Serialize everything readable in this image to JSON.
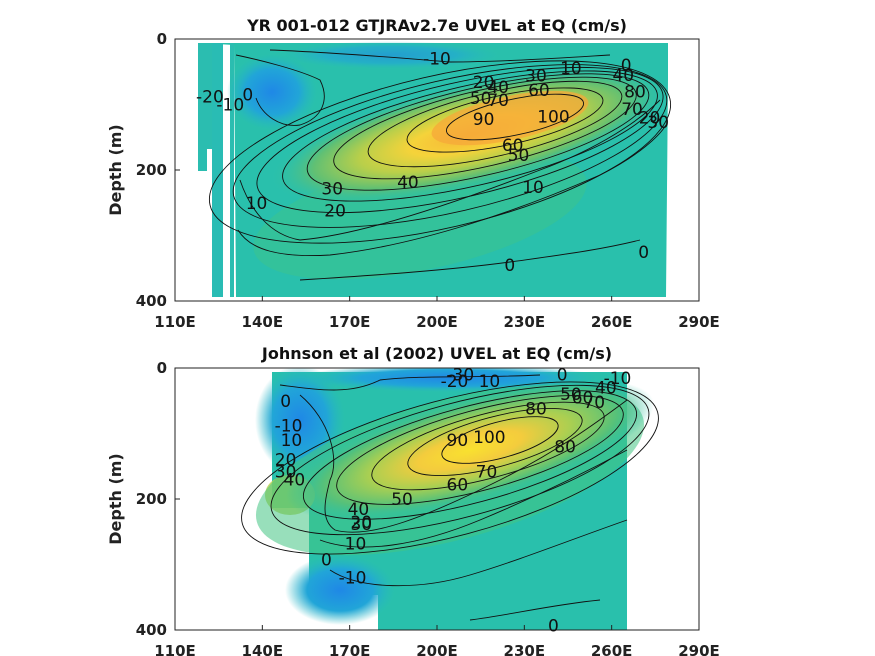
{
  "chart_data": [
    {
      "type": "heatmap",
      "title": "YR 001-012 GTJRAv2.7e UVEL at EQ (cm/s)",
      "xlabel": "",
      "ylabel": "Depth (m)",
      "xlim": [
        110,
        290
      ],
      "ylim": [
        400,
        0
      ],
      "x_ticks": [
        "110E",
        "140E",
        "170E",
        "200E",
        "230E",
        "260E",
        "290E"
      ],
      "y_ticks": [
        "0",
        "200",
        "400"
      ],
      "data_extent_x": [
        118,
        280
      ],
      "core": {
        "lon": 228,
        "depth": 115,
        "max": 100
      },
      "contour_labels": [
        {
          "text": "-10",
          "lon": 200,
          "depth": 30
        },
        {
          "text": "-20",
          "lon": 122,
          "depth": 88
        },
        {
          "text": "-10",
          "lon": 129,
          "depth": 100
        },
        {
          "text": "0",
          "lon": 135,
          "depth": 85
        },
        {
          "text": "10",
          "lon": 138,
          "depth": 250
        },
        {
          "text": "20",
          "lon": 165,
          "depth": 262
        },
        {
          "text": "30",
          "lon": 164,
          "depth": 228
        },
        {
          "text": "40",
          "lon": 190,
          "depth": 218
        },
        {
          "text": "10",
          "lon": 233,
          "depth": 226
        },
        {
          "text": "50",
          "lon": 228,
          "depth": 177
        },
        {
          "text": "60",
          "lon": 226,
          "depth": 162
        },
        {
          "text": "90",
          "lon": 216,
          "depth": 122
        },
        {
          "text": "100",
          "lon": 240,
          "depth": 118
        },
        {
          "text": "20",
          "lon": 216,
          "depth": 66
        },
        {
          "text": "40",
          "lon": 221,
          "depth": 73
        },
        {
          "text": "50",
          "lon": 215,
          "depth": 90
        },
        {
          "text": "70",
          "lon": 221,
          "depth": 93
        },
        {
          "text": "60",
          "lon": 235,
          "depth": 78
        },
        {
          "text": "30",
          "lon": 234,
          "depth": 56
        },
        {
          "text": "10",
          "lon": 246,
          "depth": 44
        },
        {
          "text": "0",
          "lon": 265,
          "depth": 40
        },
        {
          "text": "40",
          "lon": 264,
          "depth": 55
        },
        {
          "text": "80",
          "lon": 268,
          "depth": 80
        },
        {
          "text": "70",
          "lon": 267,
          "depth": 107
        },
        {
          "text": "30",
          "lon": 276,
          "depth": 127
        },
        {
          "text": "20",
          "lon": 273,
          "depth": 120
        },
        {
          "text": "0",
          "lon": 225,
          "depth": 345
        },
        {
          "text": "0",
          "lon": 271,
          "depth": 325
        }
      ]
    },
    {
      "type": "heatmap",
      "title": "Johnson et al (2002) UVEL at EQ (cm/s)",
      "xlabel": "",
      "ylabel": "Depth (m)",
      "xlim": [
        110,
        290
      ],
      "ylim": [
        400,
        0
      ],
      "x_ticks": [
        "110E",
        "140E",
        "170E",
        "200E",
        "230E",
        "260E",
        "290E"
      ],
      "y_ticks": [
        "0",
        "200",
        "400"
      ],
      "data_extent_x": [
        143,
        265
      ],
      "core": {
        "lon": 222,
        "depth": 125,
        "max": 100
      },
      "contour_labels": [
        {
          "text": "-30",
          "lon": 208,
          "depth": 10
        },
        {
          "text": "-20",
          "lon": 206,
          "depth": 20
        },
        {
          "text": "10",
          "lon": 218,
          "depth": 20
        },
        {
          "text": "0",
          "lon": 243,
          "depth": 10
        },
        {
          "text": "-10",
          "lon": 262,
          "depth": 15
        },
        {
          "text": "50",
          "lon": 246,
          "depth": 40
        },
        {
          "text": "60",
          "lon": 250,
          "depth": 45
        },
        {
          "text": "40",
          "lon": 258,
          "depth": 30
        },
        {
          "text": "70",
          "lon": 254,
          "depth": 52
        },
        {
          "text": "80",
          "lon": 234,
          "depth": 62
        },
        {
          "text": "0",
          "lon": 148,
          "depth": 50
        },
        {
          "text": "-10",
          "lon": 149,
          "depth": 88
        },
        {
          "text": "10",
          "lon": 150,
          "depth": 110
        },
        {
          "text": "20",
          "lon": 148,
          "depth": 140
        },
        {
          "text": "30",
          "lon": 148,
          "depth": 158
        },
        {
          "text": "40",
          "lon": 151,
          "depth": 170
        },
        {
          "text": "90",
          "lon": 207,
          "depth": 110
        },
        {
          "text": "100",
          "lon": 218,
          "depth": 105
        },
        {
          "text": "80",
          "lon": 244,
          "depth": 120
        },
        {
          "text": "70",
          "lon": 217,
          "depth": 158
        },
        {
          "text": "60",
          "lon": 207,
          "depth": 178
        },
        {
          "text": "50",
          "lon": 188,
          "depth": 200
        },
        {
          "text": "40",
          "lon": 173,
          "depth": 215
        },
        {
          "text": "30",
          "lon": 174,
          "depth": 238
        },
        {
          "text": "20",
          "lon": 174,
          "depth": 235
        },
        {
          "text": "10",
          "lon": 172,
          "depth": 268
        },
        {
          "text": "0",
          "lon": 162,
          "depth": 292
        },
        {
          "text": "-10",
          "lon": 171,
          "depth": 320
        },
        {
          "text": "0",
          "lon": 240,
          "depth": 393
        }
      ]
    }
  ]
}
